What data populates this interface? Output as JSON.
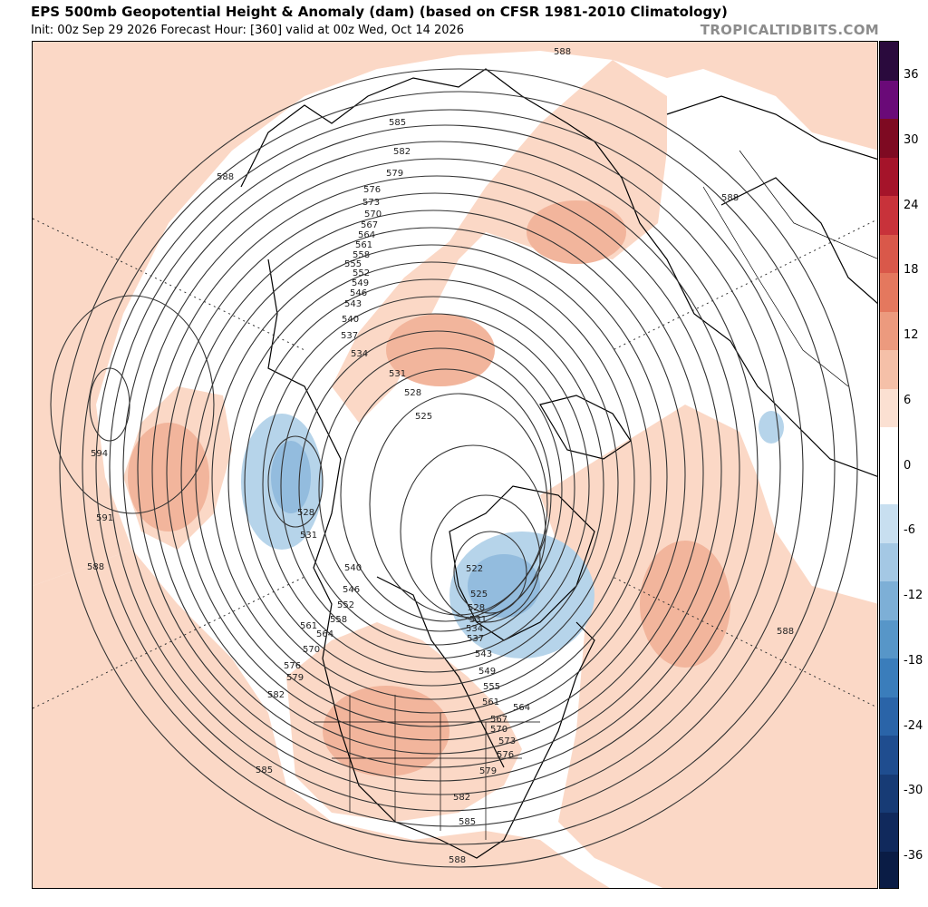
{
  "header": {
    "title": "EPS 500mb Geopotential Height & Anomaly (dam) (based on CFSR 1981-2010 Climatology)",
    "subtitle": "Init: 00z Sep 29 2026   Forecast Hour: [360]   valid at 00z Wed, Oct 14 2026",
    "brand": "TROPICALTIDBITS.COM"
  },
  "colorbar": {
    "ticks": [
      "36",
      "30",
      "24",
      "18",
      "12",
      "6",
      "0",
      "-6",
      "-12",
      "-18",
      "-24",
      "-30",
      "-36"
    ],
    "colors": [
      "#2a0a3d",
      "#6a0a78",
      "#7e0a22",
      "#a5142a",
      "#c8323a",
      "#d9584a",
      "#e4785e",
      "#ec9a7e",
      "#f5c0a8",
      "#fbe0d2",
      "#ffffff",
      "#ffffff",
      "#c8dff0",
      "#a4c8e4",
      "#7dafd6",
      "#5796c8",
      "#3a7dbb",
      "#2a64a8",
      "#1f4d8f",
      "#173b75",
      "#10295c",
      "#0a1c45"
    ]
  },
  "contour_labels": {
    "north_block": [
      "588",
      "585",
      "582",
      "579",
      "576",
      "573",
      "570",
      "567",
      "564",
      "561",
      "558",
      "555",
      "552",
      "549",
      "546",
      "543",
      "540",
      "537",
      "534",
      "531",
      "528",
      "525"
    ],
    "pacific_low": [
      "528",
      "531"
    ],
    "west_coast": [
      "540",
      "546",
      "552",
      "558",
      "564",
      "561",
      "570",
      "576",
      "579",
      "582",
      "585"
    ],
    "hudson_low": [
      "522",
      "525",
      "528",
      "531",
      "534",
      "537",
      "543",
      "549",
      "555",
      "561",
      "564",
      "567",
      "570",
      "573",
      "576",
      "579",
      "582",
      "585",
      "588"
    ],
    "subtropical": [
      "594",
      "591",
      "588",
      "588",
      "588",
      "588"
    ]
  }
}
